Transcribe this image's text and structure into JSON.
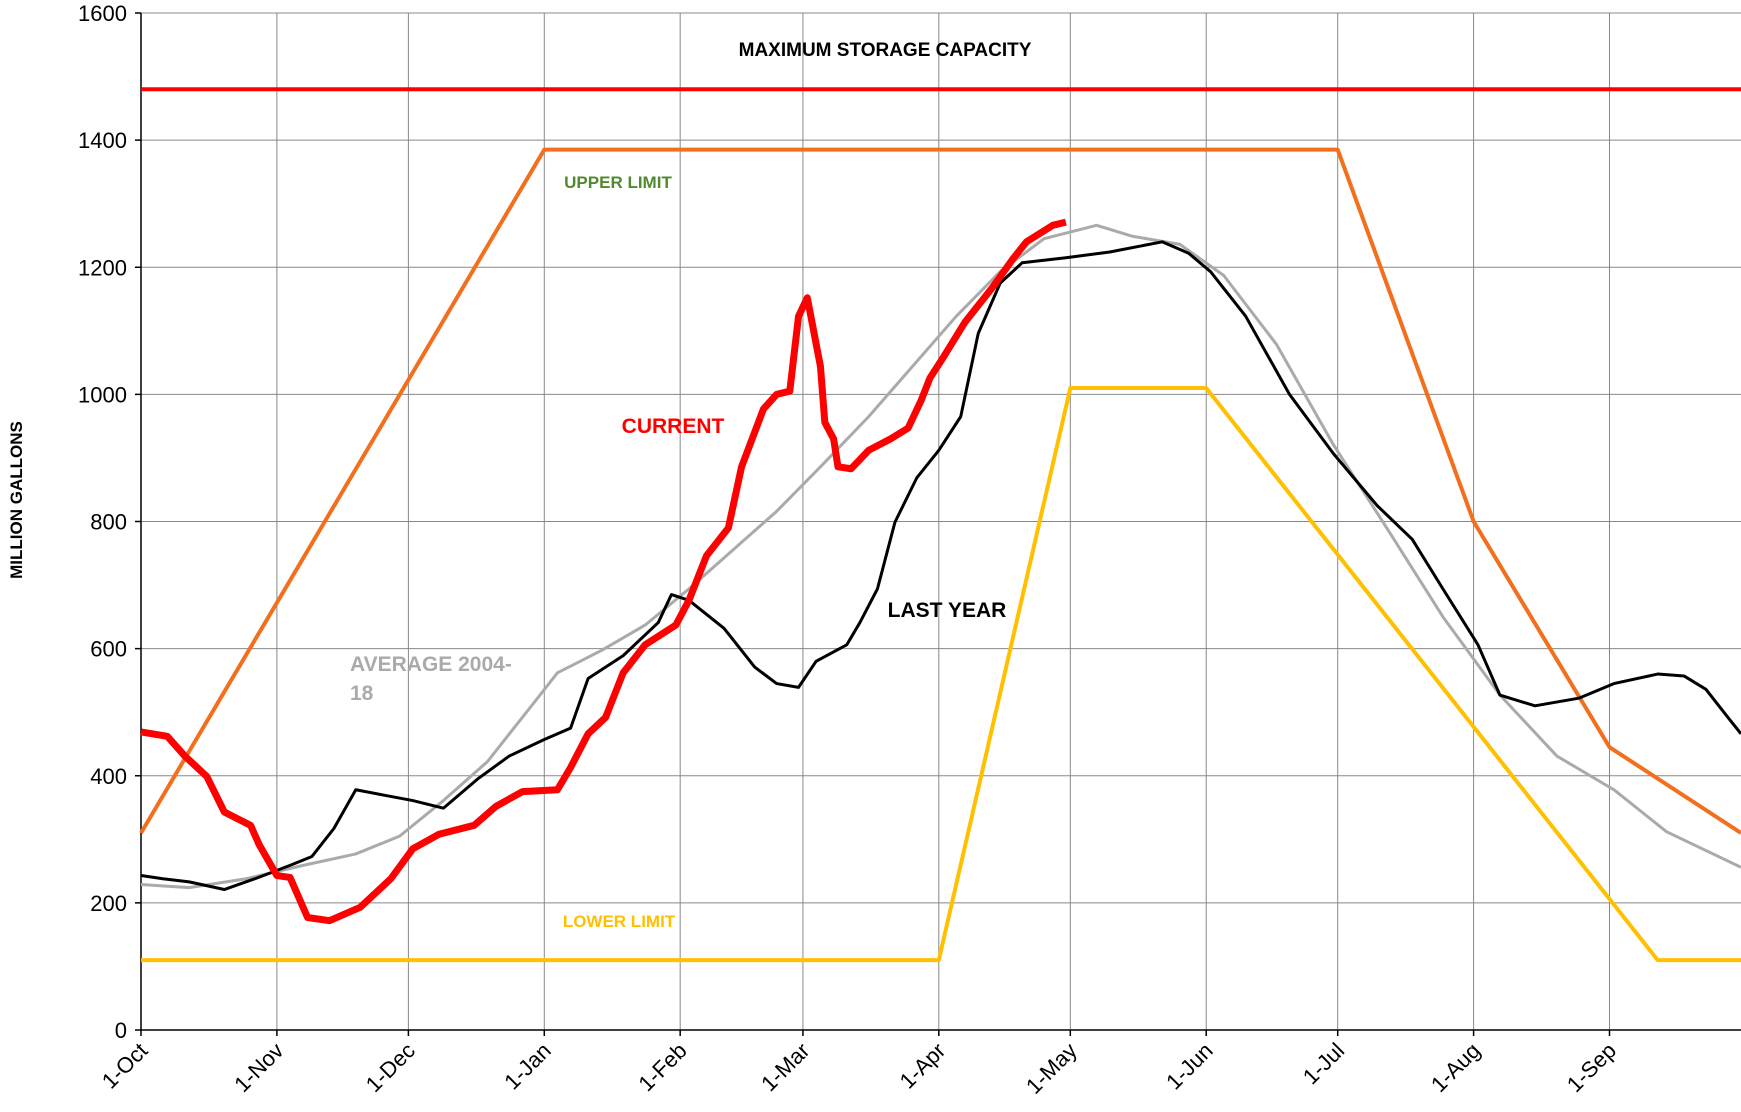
{
  "chart_data": {
    "type": "line",
    "y_label": "MILLION GALLONS",
    "xlim": [
      0,
      365
    ],
    "xticks": [
      {
        "value": 0,
        "label": "1-Oct"
      },
      {
        "value": 31,
        "label": "1-Nov"
      },
      {
        "value": 61,
        "label": "1-Dec"
      },
      {
        "value": 92,
        "label": "1-Jan"
      },
      {
        "value": 123,
        "label": "1-Feb"
      },
      {
        "value": 151,
        "label": "1-Mar"
      },
      {
        "value": 182,
        "label": "1-Apr"
      },
      {
        "value": 212,
        "label": "1-May"
      },
      {
        "value": 243,
        "label": "1-Jun"
      },
      {
        "value": 273,
        "label": "1-Jul"
      },
      {
        "value": 304,
        "label": "1-Aug"
      },
      {
        "value": 335,
        "label": "1-Sep"
      }
    ],
    "ylim": [
      0,
      1600
    ],
    "yticks": [
      0,
      200,
      400,
      600,
      800,
      1000,
      1200,
      1400,
      1600
    ],
    "grid": true,
    "series": [
      {
        "name": "MAXIMUM STORAGE CAPACITY",
        "color": "#ff0000",
        "label_color": "#000000",
        "x": [
          0,
          365
        ],
        "values": [
          1480,
          1480
        ]
      },
      {
        "name": "UPPER LIMIT",
        "color": "#f26f1d",
        "label_color": "#4f8a2e",
        "x": [
          0,
          92,
          273,
          304,
          335,
          365
        ],
        "values": [
          310,
          1385,
          1385,
          800,
          445,
          310
        ]
      },
      {
        "name": "LOWER LIMIT",
        "color": "#ffc000",
        "label_color": "#ffc000",
        "x": [
          0,
          182,
          212,
          243,
          346,
          365
        ],
        "values": [
          110,
          110,
          1010,
          1010,
          110,
          110
        ]
      },
      {
        "name": "AVERAGE 2004-18",
        "color": "#aaaaaa",
        "label_color": "#aaaaaa",
        "x": [
          0,
          11,
          24,
          37,
          49,
          59,
          69,
          79,
          90,
          95,
          105,
          115,
          125,
          135,
          145,
          155,
          166,
          176,
          186,
          196,
          206,
          218,
          226,
          237,
          247,
          259,
          272,
          285,
          297,
          310,
          323,
          336,
          348,
          365
        ],
        "values": [
          229,
          224,
          238,
          259,
          277,
          305,
          361,
          422,
          518,
          562,
          597,
          637,
          694,
          755,
          816,
          886,
          965,
          1044,
          1123,
          1193,
          1245,
          1266,
          1249,
          1236,
          1187,
          1079,
          921,
          781,
          650,
          527,
          431,
          378,
          312,
          256
        ]
      },
      {
        "name": "LAST YEAR",
        "color": "#000000",
        "label_color": "#000000",
        "x": [
          0,
          5,
          11,
          19,
          26,
          34,
          39,
          44,
          49,
          55,
          62,
          69,
          77,
          84,
          92,
          98,
          102,
          110,
          118,
          121,
          125,
          133,
          140,
          145,
          150,
          154,
          161,
          164,
          168,
          172,
          177,
          182,
          187,
          191,
          196,
          201,
          211,
          221,
          233,
          239,
          244,
          252,
          262,
          272,
          282,
          290,
          297,
          305,
          310,
          318,
          328,
          336,
          346,
          352,
          357,
          362,
          365
        ],
        "values": [
          243,
          238,
          233,
          221,
          238,
          259,
          273,
          317,
          378,
          370,
          361,
          349,
          396,
          431,
          457,
          475,
          553,
          589,
          641,
          685,
          676,
          632,
          571,
          545,
          539,
          580,
          606,
          641,
          694,
          799,
          869,
          912,
          965,
          1096,
          1175,
          1207,
          1215,
          1224,
          1240,
          1222,
          1193,
          1123,
          1000,
          907,
          825,
          772,
          694,
          606,
          527,
          510,
          522,
          545,
          560,
          557,
          536,
          492,
          466
        ]
      },
      {
        "name": "CURRENT",
        "color": "#ff0000",
        "label_color": "#ff0000",
        "x": [
          0,
          6,
          10,
          15,
          19,
          25,
          27,
          31,
          34,
          38,
          43,
          50,
          57,
          62,
          68,
          76,
          81,
          87,
          95,
          98,
          102,
          106,
          110,
          115,
          122,
          125,
          129,
          134,
          137,
          142,
          145,
          148,
          150,
          152,
          155,
          156,
          158,
          159,
          162,
          166,
          171,
          175,
          178,
          180,
          183,
          188,
          194,
          199,
          202,
          208,
          211
        ],
        "values": [
          469,
          462,
          431,
          399,
          343,
          322,
          291,
          243,
          240,
          177,
          172,
          193,
          238,
          285,
          308,
          322,
          352,
          375,
          378,
          413,
          466,
          492,
          562,
          606,
          637,
          676,
          746,
          790,
          886,
          977,
          1000,
          1005,
          1123,
          1152,
          1044,
          956,
          930,
          886,
          883,
          912,
          930,
          947,
          991,
          1026,
          1058,
          1114,
          1166,
          1214,
          1240,
          1266,
          1271
        ]
      }
    ]
  }
}
